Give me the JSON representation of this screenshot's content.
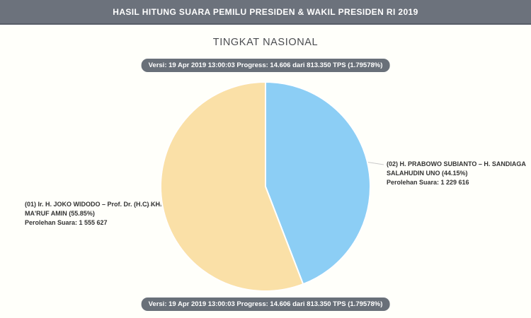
{
  "header": {
    "title": "HASIL HITUNG SUARA PEMILU PRESIDEN & WAKIL PRESIDEN RI 2019"
  },
  "page": {
    "title": "TINGKAT NASIONAL"
  },
  "progress": {
    "text": "Versi: 19 Apr 2019 13:00:03 Progress: 14.606 dari 813.350 TPS (1.79578%)"
  },
  "chart_data": {
    "type": "pie",
    "title": "TINGKAT NASIONAL",
    "start_angle_deg": 0,
    "direction": "clockwise",
    "stroke_color": "#FFFFFF",
    "slices": [
      {
        "id": "01",
        "candidate": "Ir. H. JOKO WIDODO – Prof. Dr. (H.C) KH. MA'RUF AMIN",
        "percent": 55.85,
        "votes": 1555627,
        "color": "#FAE0A7",
        "label_side": "left",
        "label_line1": "(01) Ir. H. JOKO WIDODO – Prof. Dr. (H.C) KH.",
        "label_line2": "MA'RUF AMIN (55.85%)",
        "label_line3": "Perolehan Suara: 1 555 627"
      },
      {
        "id": "02",
        "candidate": "H. PRABOWO SUBIANTO – H. SANDIAGA SALAHUDIN UNO",
        "percent": 44.15,
        "votes": 1229616,
        "color": "#8CCEF5",
        "label_side": "right",
        "label_line1": "(02) H. PRABOWO SUBIANTO – H. SANDIAGA",
        "label_line2": "SALAHUDIN UNO (44.15%)",
        "label_line3": "Perolehan Suara: 1 229 616"
      }
    ],
    "colors": {
      "header_bg": "#6C727C",
      "header_border": "#575D66",
      "badge_bg": "#697079",
      "page_bg": "#FFFFFA",
      "label_text": "#333333",
      "leader_line": "#C9C9C9"
    }
  }
}
